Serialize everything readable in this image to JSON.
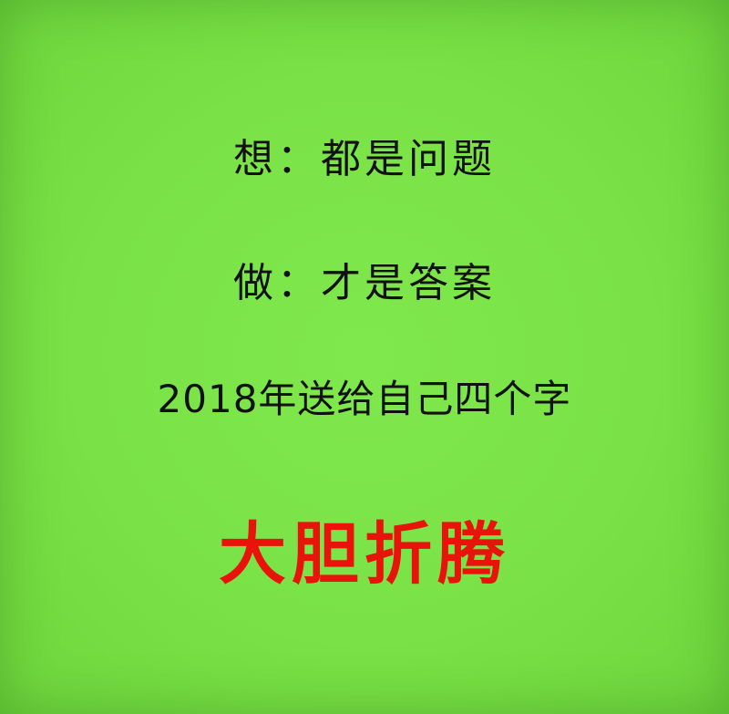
{
  "lines": {
    "think": "想：都是问题",
    "do": "做：才是答案",
    "gift": "2018年送给自己四个字",
    "motto": "大胆折腾"
  },
  "colors": {
    "background": "#7be04a",
    "text": "#111111",
    "motto": "#e8140c"
  }
}
